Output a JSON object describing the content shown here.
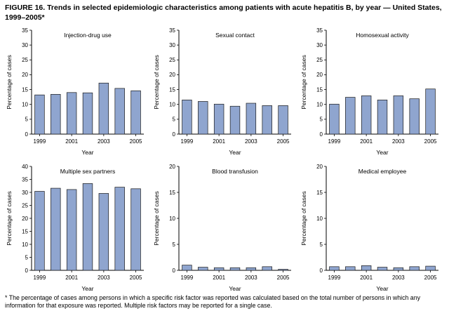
{
  "figure": {
    "title": "FIGURE 16. Trends in selected epidemiologic characteristics among patients with acute hepatitis B, by year — United States, 1999–2005*",
    "footnote": "* The percentage of cases among persons in which a specific risk factor was reported was calculated based on the total number of persons in which any information for that exposure was reported. Multiple risk factors may be reported for a single case."
  },
  "style": {
    "bar_fill": "#8fa5cf",
    "bar_stroke": "#1a1a1a",
    "axis_color": "#000000"
  },
  "chart_data": [
    {
      "type": "bar",
      "slug": "injection-drug-use",
      "title": "Injection-drug use",
      "categories": [
        1999,
        2000,
        2001,
        2002,
        2003,
        2004,
        2005
      ],
      "values": [
        13.2,
        13.4,
        14.0,
        13.9,
        17.2,
        15.4,
        14.6
      ],
      "xlabel": "Year",
      "ylabel": "Percentage of cases",
      "ylim": [
        0,
        35
      ],
      "ytick_step": 5,
      "xtick_labels": [
        1999,
        2001,
        2003,
        2005
      ],
      "grid": false,
      "legend": "none"
    },
    {
      "type": "bar",
      "slug": "sexual-contact",
      "title": "Sexual contact",
      "categories": [
        1999,
        2000,
        2001,
        2002,
        2003,
        2004,
        2005
      ],
      "values": [
        11.5,
        11.0,
        10.1,
        9.4,
        10.4,
        9.6,
        9.6
      ],
      "xlabel": "Year",
      "ylabel": "Percentage of cases",
      "ylim": [
        0,
        35
      ],
      "ytick_step": 5,
      "xtick_labels": [
        1999,
        2001,
        2003,
        2005
      ],
      "grid": false,
      "legend": "none"
    },
    {
      "type": "bar",
      "slug": "homosexual-activity",
      "title": "Homosexual activity",
      "categories": [
        1999,
        2000,
        2001,
        2002,
        2003,
        2004,
        2005
      ],
      "values": [
        10.1,
        12.4,
        12.9,
        11.5,
        12.9,
        11.9,
        15.2
      ],
      "xlabel": "Year",
      "ylabel": "Percentage of cases",
      "ylim": [
        0,
        35
      ],
      "ytick_step": 5,
      "xtick_labels": [
        1999,
        2001,
        2003,
        2005
      ],
      "grid": false,
      "legend": "none"
    },
    {
      "type": "bar",
      "slug": "multiple-sex-partners",
      "title": "Multiple sex partners",
      "categories": [
        1999,
        2000,
        2001,
        2002,
        2003,
        2004,
        2005
      ],
      "values": [
        30.4,
        31.6,
        31.1,
        33.4,
        29.6,
        32.0,
        31.4
      ],
      "xlabel": "Year",
      "ylabel": "Percentage of cases",
      "ylim": [
        0,
        40
      ],
      "ytick_step": 5,
      "xtick_labels": [
        1999,
        2001,
        2003,
        2005
      ],
      "grid": false,
      "legend": "none"
    },
    {
      "type": "bar",
      "slug": "blood-transfusion",
      "title": "Blood transfusion",
      "categories": [
        1999,
        2000,
        2001,
        2002,
        2003,
        2004,
        2005
      ],
      "values": [
        1.0,
        0.6,
        0.5,
        0.5,
        0.5,
        0.7,
        0.2
      ],
      "xlabel": "Year",
      "ylabel": "Percentage of cases",
      "ylim": [
        0,
        20
      ],
      "ytick_step": 5,
      "xtick_labels": [
        1999,
        2001,
        2003,
        2005
      ],
      "grid": false,
      "legend": "none"
    },
    {
      "type": "bar",
      "slug": "medical-employee",
      "title": "Medical employee",
      "categories": [
        1999,
        2000,
        2001,
        2002,
        2003,
        2004,
        2005
      ],
      "values": [
        0.7,
        0.7,
        0.9,
        0.6,
        0.5,
        0.7,
        0.8
      ],
      "xlabel": "Year",
      "ylabel": "Percentage of cases",
      "ylim": [
        0,
        20
      ],
      "ytick_step": 5,
      "xtick_labels": [
        1999,
        2001,
        2003,
        2005
      ],
      "grid": false,
      "legend": "none"
    }
  ]
}
